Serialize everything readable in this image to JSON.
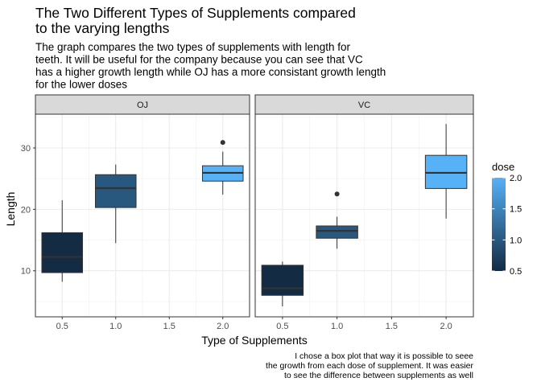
{
  "chart_data": {
    "type": "boxplot",
    "title": "The Two Different Types of Supplements compared\nto the varying lengths",
    "subtitle": "The graph compares the two types of supplements with length for\nteeth. It will be useful for the company because you can see that VC\nhas a higher growth length while OJ has a more consistant growth length\nfor the lower doses",
    "caption": "I chose a box plot that way it is possible to seee\nthe growth from each dose of supplement. It was easier\nto see the difference between supplements as well",
    "xlabel": "Type of Supplements",
    "ylabel": "Length",
    "xlim": [
      0.25,
      2.25
    ],
    "ylim": [
      2.5,
      35.5
    ],
    "x_ticks": [
      0.5,
      1.0,
      1.5,
      2.0
    ],
    "x_tick_labels": [
      "0.5",
      "1.0",
      "1.5",
      "2.0"
    ],
    "y_ticks": [
      10,
      20,
      30
    ],
    "y_tick_labels": [
      "10",
      "20",
      "30"
    ],
    "grid": true,
    "legend": {
      "title": "dose",
      "position": "right",
      "type": "colorbar",
      "range": [
        0.5,
        2.0
      ],
      "ticks": [
        "0.5",
        "1.0",
        "1.5",
        "2.0"
      ],
      "low_color": "#132B43",
      "high_color": "#56B1F7"
    },
    "facets": [
      {
        "name": "OJ",
        "boxes": [
          {
            "dose": 0.5,
            "whisker_low": 8.2,
            "q1": 9.7,
            "median": 12.25,
            "q3": 16.2,
            "whisker_high": 21.5,
            "outliers": []
          },
          {
            "dose": 1.0,
            "whisker_low": 14.5,
            "q1": 20.3,
            "median": 23.45,
            "q3": 25.65,
            "whisker_high": 27.3,
            "outliers": []
          },
          {
            "dose": 2.0,
            "whisker_low": 22.4,
            "q1": 24.6,
            "median": 25.95,
            "q3": 27.1,
            "whisker_high": 29.4,
            "outliers": [
              30.9
            ]
          }
        ]
      },
      {
        "name": "VC",
        "boxes": [
          {
            "dose": 0.5,
            "whisker_low": 4.2,
            "q1": 6.0,
            "median": 7.15,
            "q3": 10.9,
            "whisker_high": 11.5,
            "outliers": []
          },
          {
            "dose": 1.0,
            "whisker_low": 13.6,
            "q1": 15.3,
            "median": 16.5,
            "q3": 17.3,
            "whisker_high": 18.8,
            "outliers": [
              22.5
            ]
          },
          {
            "dose": 2.0,
            "whisker_low": 18.5,
            "q1": 23.4,
            "median": 25.95,
            "q3": 28.8,
            "whisker_high": 33.9,
            "outliers": []
          }
        ]
      }
    ]
  }
}
